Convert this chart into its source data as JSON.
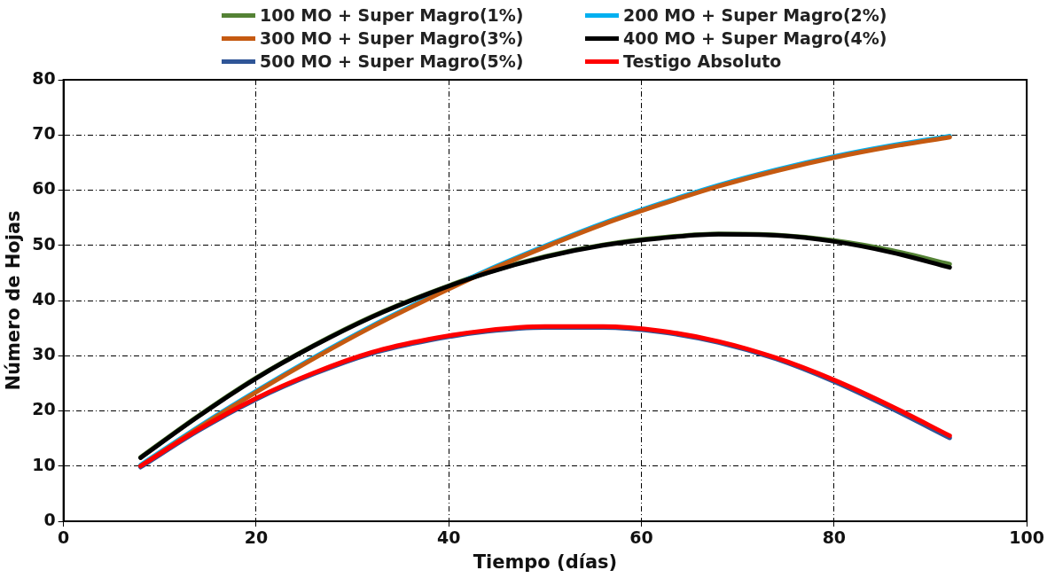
{
  "chart_data": {
    "type": "line",
    "xlabel": "Tiempo (días)",
    "ylabel": "Número de Hojas",
    "xlim": [
      0,
      100
    ],
    "xticks": [
      0,
      20,
      40,
      60,
      80,
      100
    ],
    "ylim": [
      0,
      80
    ],
    "yticks": [
      0,
      10,
      20,
      30,
      40,
      50,
      60,
      70,
      80
    ],
    "grid": true,
    "legend": "top",
    "marker": "none",
    "line_style": "solid",
    "x": [
      8,
      14,
      20,
      26,
      32,
      38,
      44,
      50,
      56,
      62,
      68,
      74,
      80,
      86,
      92
    ],
    "series": [
      {
        "name": "100 MO + Super Magro(1%)",
        "color": "#548235",
        "values": [
          11.6,
          19.1,
          26.0,
          31.9,
          37.1,
          41.4,
          45.1,
          48.0,
          50.1,
          51.4,
          52.1,
          51.9,
          50.9,
          49.1,
          46.6
        ]
      },
      {
        "name": "200 MO + Super Magro(2%)",
        "color": "#00b0f0",
        "values": [
          10.2,
          17.1,
          23.6,
          29.7,
          35.4,
          40.6,
          45.5,
          49.9,
          54.0,
          57.6,
          60.9,
          63.7,
          66.1,
          68.1,
          69.8
        ]
      },
      {
        "name": "300 MO + Super Magro(3%)",
        "color": "#c55a11",
        "values": [
          10.0,
          16.9,
          23.4,
          29.5,
          35.2,
          40.4,
          45.3,
          49.7,
          53.8,
          57.4,
          60.7,
          63.5,
          65.9,
          67.9,
          69.6
        ]
      },
      {
        "name": "400 MO + Super Magro(4%)",
        "color": "#000000",
        "values": [
          11.5,
          19.0,
          25.9,
          31.8,
          37.0,
          41.3,
          45.0,
          47.9,
          50.0,
          51.3,
          52.0,
          51.8,
          50.7,
          48.7,
          46.0
        ]
      },
      {
        "name": "500 MO + Super Magro(5%)",
        "color": "#2f5597",
        "values": [
          9.8,
          16.4,
          22.1,
          26.7,
          30.4,
          32.8,
          34.4,
          35.1,
          35.1,
          34.3,
          32.4,
          29.4,
          25.3,
          20.4,
          15.1
        ]
      },
      {
        "name": "Testigo Absoluto",
        "color": "#ff0000",
        "values": [
          10.0,
          16.6,
          22.3,
          26.9,
          30.6,
          33.0,
          34.6,
          35.3,
          35.3,
          34.5,
          32.6,
          29.6,
          25.6,
          20.8,
          15.5
        ]
      }
    ]
  }
}
